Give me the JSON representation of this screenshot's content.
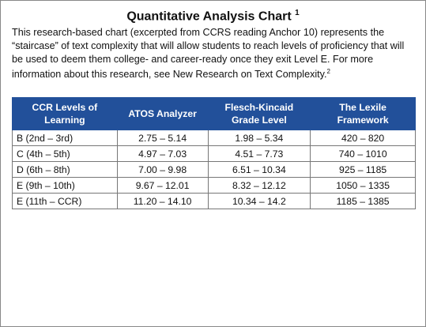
{
  "header": {
    "title": "Quantitative Analysis Chart",
    "footnote": "1"
  },
  "intro": {
    "text": "This research-based chart (excerpted from CCRS reading Anchor 10) represents the “staircase” of text complexity that will allow students to reach levels of proficiency that will be used to deem them college- and career-ready once they exit Level E. For more information about this research, see New Research on Text Complexity.",
    "footnote": "2"
  },
  "table": {
    "columns": [
      "CCR Levels of Learning",
      "ATOS Analyzer",
      "Flesch-Kincaid Grade Level",
      "The Lexile Framework"
    ],
    "rows": [
      [
        "B (2nd – 3rd)",
        "2.75 – 5.14",
        "1.98 – 5.34",
        "420 – 820"
      ],
      [
        "C (4th – 5th)",
        "4.97 – 7.03",
        "4.51 – 7.73",
        "740 – 1010"
      ],
      [
        "D (6th – 8th)",
        "7.00 – 9.98",
        "6.51 – 10.34",
        "925 – 1185"
      ],
      [
        "E (9th – 10th)",
        "9.67 – 12.01",
        "8.32 – 12.12",
        "1050 – 1335"
      ],
      [
        "E (11th – CCR)",
        "11.20 – 14.10",
        "10.34 – 14.2",
        "1185 – 1385"
      ]
    ]
  }
}
